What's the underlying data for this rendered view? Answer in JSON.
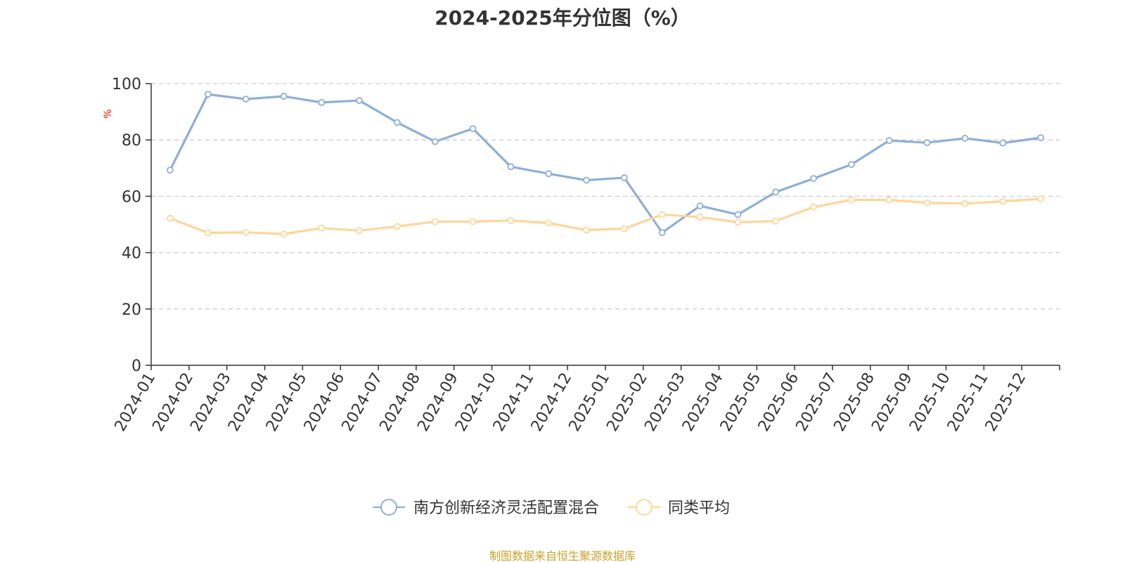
{
  "chart_data": {
    "type": "line",
    "title": "2024-2025年分位图（%）",
    "ylabel": "%",
    "ylim": [
      0,
      100
    ],
    "yticks": [
      "0",
      "20",
      "40",
      "60",
      "80",
      "100"
    ],
    "grid": true,
    "legend": "bottom-center",
    "categories": [
      "2024-01",
      "2024-02",
      "2024-03",
      "2024-04",
      "2024-05",
      "2024-06",
      "2024-07",
      "2024-08",
      "2024-09",
      "2024-10",
      "2024-11",
      "2024-12",
      "2025-01",
      "2025-02",
      "2025-03",
      "2025-04",
      "2025-05",
      "2025-06",
      "2025-07",
      "2025-08",
      "2025-09",
      "2025-10",
      "2025-11",
      "2025-12"
    ],
    "series": [
      {
        "name": "南方创新经济灵活配置混合",
        "color": "#8eaed9",
        "values": [
          69.3,
          96.2,
          94.5,
          95.5,
          93.3,
          94.0,
          86.2,
          79.4,
          84.0,
          70.5,
          68.0,
          65.7,
          66.6,
          47.1,
          56.6,
          53.5,
          61.5,
          66.3,
          71.3,
          79.8,
          79.0,
          80.6,
          78.9,
          80.8
        ]
      },
      {
        "name": "同类平均",
        "color": "#fdd69a",
        "values": [
          52.2,
          47.0,
          47.2,
          46.6,
          48.7,
          47.8,
          49.3,
          51.0,
          51.0,
          51.4,
          50.5,
          48.0,
          48.5,
          53.5,
          52.6,
          50.8,
          51.2,
          56.2,
          58.7,
          58.7,
          57.7,
          57.4,
          58.2,
          59.1
        ]
      }
    ],
    "axis_color": "#333333",
    "grid_color": "#cccccc",
    "ylabel_color": "#ff0000"
  },
  "footer": {
    "source": "制图数据来自恒生聚源数据库",
    "color": "#c9a227"
  }
}
